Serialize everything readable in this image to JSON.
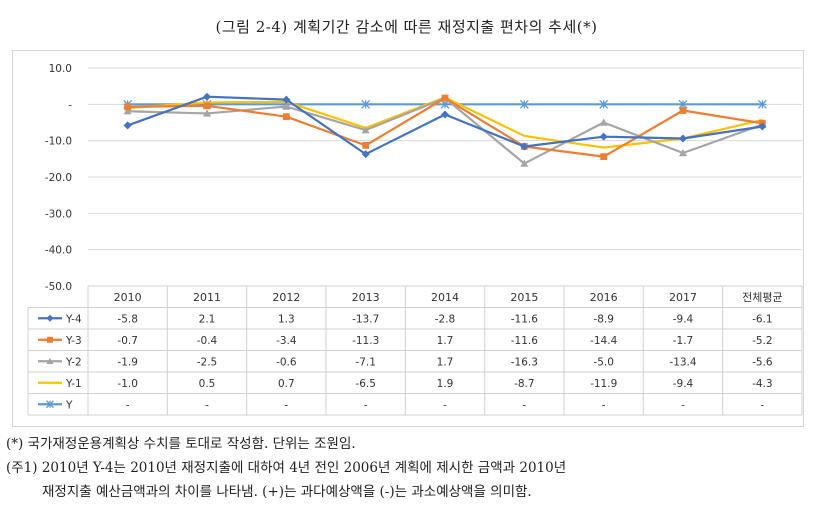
{
  "title": "(그림 2-4) 계획기간 감소에 따른 재정지출 편차의 추세(*)",
  "chart_data": {
    "type": "line",
    "categories": [
      "2010",
      "2011",
      "2012",
      "2013",
      "2014",
      "2015",
      "2016",
      "2017",
      "전체평균"
    ],
    "ylim": [
      -50,
      10
    ],
    "yticks": [
      "10.0",
      "-",
      "-10.0",
      "-20.0",
      "-30.0",
      "-40.0",
      "-50.0"
    ],
    "ytick_values": [
      10,
      0,
      -10,
      -20,
      -30,
      -40,
      -50
    ],
    "grid": true,
    "legend": "data-table",
    "series": [
      {
        "name": "Y-4",
        "color": "#4472c4",
        "marker": "diamond",
        "values": [
          -5.8,
          2.1,
          1.3,
          -13.7,
          -2.8,
          -11.6,
          -8.9,
          -9.4,
          -6.1
        ],
        "labels": [
          "-5.8",
          "2.1",
          "1.3",
          "-13.7",
          "-2.8",
          "-11.6",
          "-8.9",
          "-9.4",
          "-6.1"
        ]
      },
      {
        "name": "Y-3",
        "color": "#ed7d31",
        "marker": "square",
        "values": [
          -0.7,
          -0.4,
          -3.4,
          -11.3,
          1.7,
          -11.6,
          -14.4,
          -1.7,
          -5.2
        ],
        "labels": [
          "-0.7",
          "-0.4",
          "-3.4",
          "-11.3",
          "1.7",
          "-11.6",
          "-14.4",
          "-1.7",
          "-5.2"
        ]
      },
      {
        "name": "Y-2",
        "color": "#a5a5a5",
        "marker": "triangle",
        "values": [
          -1.9,
          -2.5,
          -0.6,
          -7.1,
          1.7,
          -16.3,
          -5.0,
          -13.4,
          -5.6
        ],
        "labels": [
          "-1.9",
          "-2.5",
          "-0.6",
          "-7.1",
          "1.7",
          "-16.3",
          "-5.0",
          "-13.4",
          "-5.6"
        ]
      },
      {
        "name": "Y-1",
        "color": "#ffc000",
        "marker": "none",
        "values": [
          -1.0,
          0.5,
          0.7,
          -6.5,
          1.9,
          -8.7,
          -11.9,
          -9.4,
          -4.3
        ],
        "labels": [
          "-1.0",
          "0.5",
          "0.7",
          "-6.5",
          "1.9",
          "-8.7",
          "-11.9",
          "-9.4",
          "-4.3"
        ]
      },
      {
        "name": "Y",
        "color": "#5b9bd5",
        "marker": "star",
        "values": [
          0,
          0,
          0,
          0,
          0,
          0,
          0,
          0,
          0
        ],
        "labels": [
          "-",
          "-",
          "-",
          "-",
          "-",
          "-",
          "-",
          "-",
          "-"
        ]
      }
    ]
  },
  "notes": {
    "line1": "(*) 국가재정운용계획상 수치를 토대로 작성함. 단위는 조원임.",
    "line2": "(주1) 2010년 Y-4는 2010년 재정지출에 대하여 4년 전인 2006년 계획에 제시한 금액과 2010년",
    "line3": "재정지출 예산금액과의 차이를 나타냄. (+)는 과다예상액을 (-)는 과소예상액을 의미함."
  }
}
